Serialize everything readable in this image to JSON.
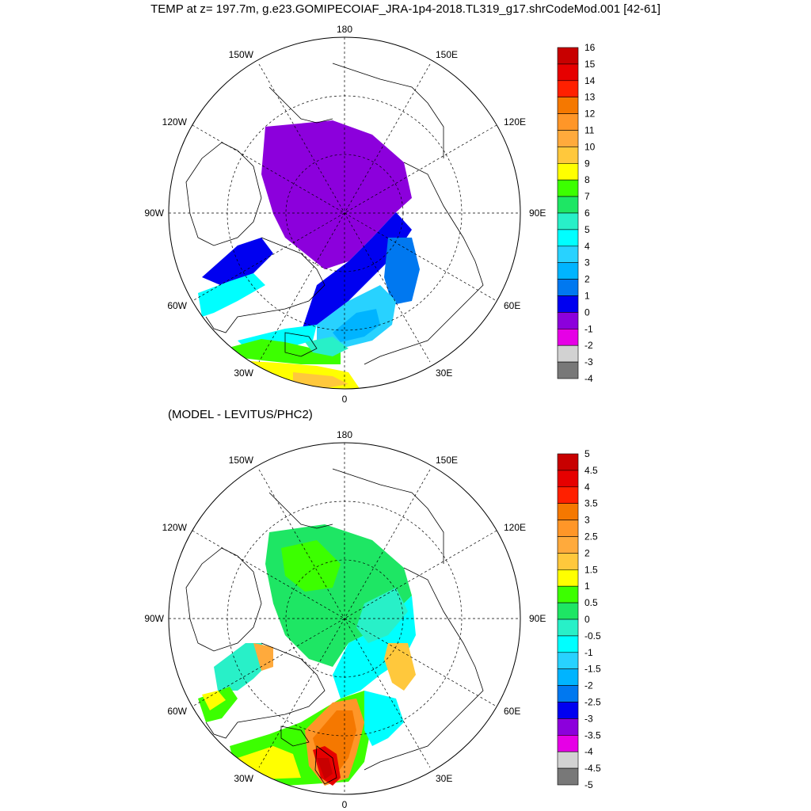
{
  "title": "TEMP at z= 197.7m, g.e23.GOMIPECOIAF_JRA-1p4-2018.TL319_g17.shrCodeMod.001 [42-61]",
  "subtitle": "(MODEL - LEVITUS/PHC2)",
  "lon_labels": {
    "top": "180",
    "bottom": "0",
    "left": "90W",
    "right": "90E",
    "upper_left": "150W",
    "upper_right": "150E",
    "mid_left_top": "120W",
    "mid_right_top": "120E",
    "mid_left_bottom": "60W",
    "mid_right_bottom": "60E",
    "lower_left": "30W",
    "lower_right": "30E"
  },
  "colorbar_top": {
    "labels": [
      "16",
      "15",
      "14",
      "13",
      "12",
      "11",
      "10",
      "9",
      "8",
      "7",
      "6",
      "5",
      "4",
      "3",
      "2",
      "1",
      "0",
      "-1",
      "-2",
      "-3",
      "-4"
    ],
    "colors": [
      "#c80000",
      "#e60000",
      "#ff2000",
      "#f57800",
      "#ff9628",
      "#ffaa3c",
      "#ffc83c",
      "#ffff00",
      "#3cff00",
      "#1ee664",
      "#28f0c8",
      "#00ffff",
      "#28d2ff",
      "#00b4ff",
      "#0078f0",
      "#0000f0",
      "#8c00dc",
      "#e600e6",
      "#d2d2d2",
      "#787878"
    ]
  },
  "colorbar_bottom": {
    "labels": [
      "5",
      "4.5",
      "4",
      "3.5",
      "3",
      "2.5",
      "2",
      "1.5",
      "1",
      "0.5",
      "0",
      "-0.5",
      "-1",
      "-1.5",
      "-2",
      "-2.5",
      "-3",
      "-3.5",
      "-4",
      "-4.5",
      "-5"
    ],
    "colors": [
      "#c80000",
      "#e60000",
      "#ff2000",
      "#f57800",
      "#ff9628",
      "#ffaa3c",
      "#ffc83c",
      "#ffff00",
      "#3cff00",
      "#1ee664",
      "#28f0c8",
      "#00ffff",
      "#28d2ff",
      "#00b4ff",
      "#0078f0",
      "#0000f0",
      "#8c00dc",
      "#e600e6",
      "#d2d2d2",
      "#787878"
    ]
  }
}
